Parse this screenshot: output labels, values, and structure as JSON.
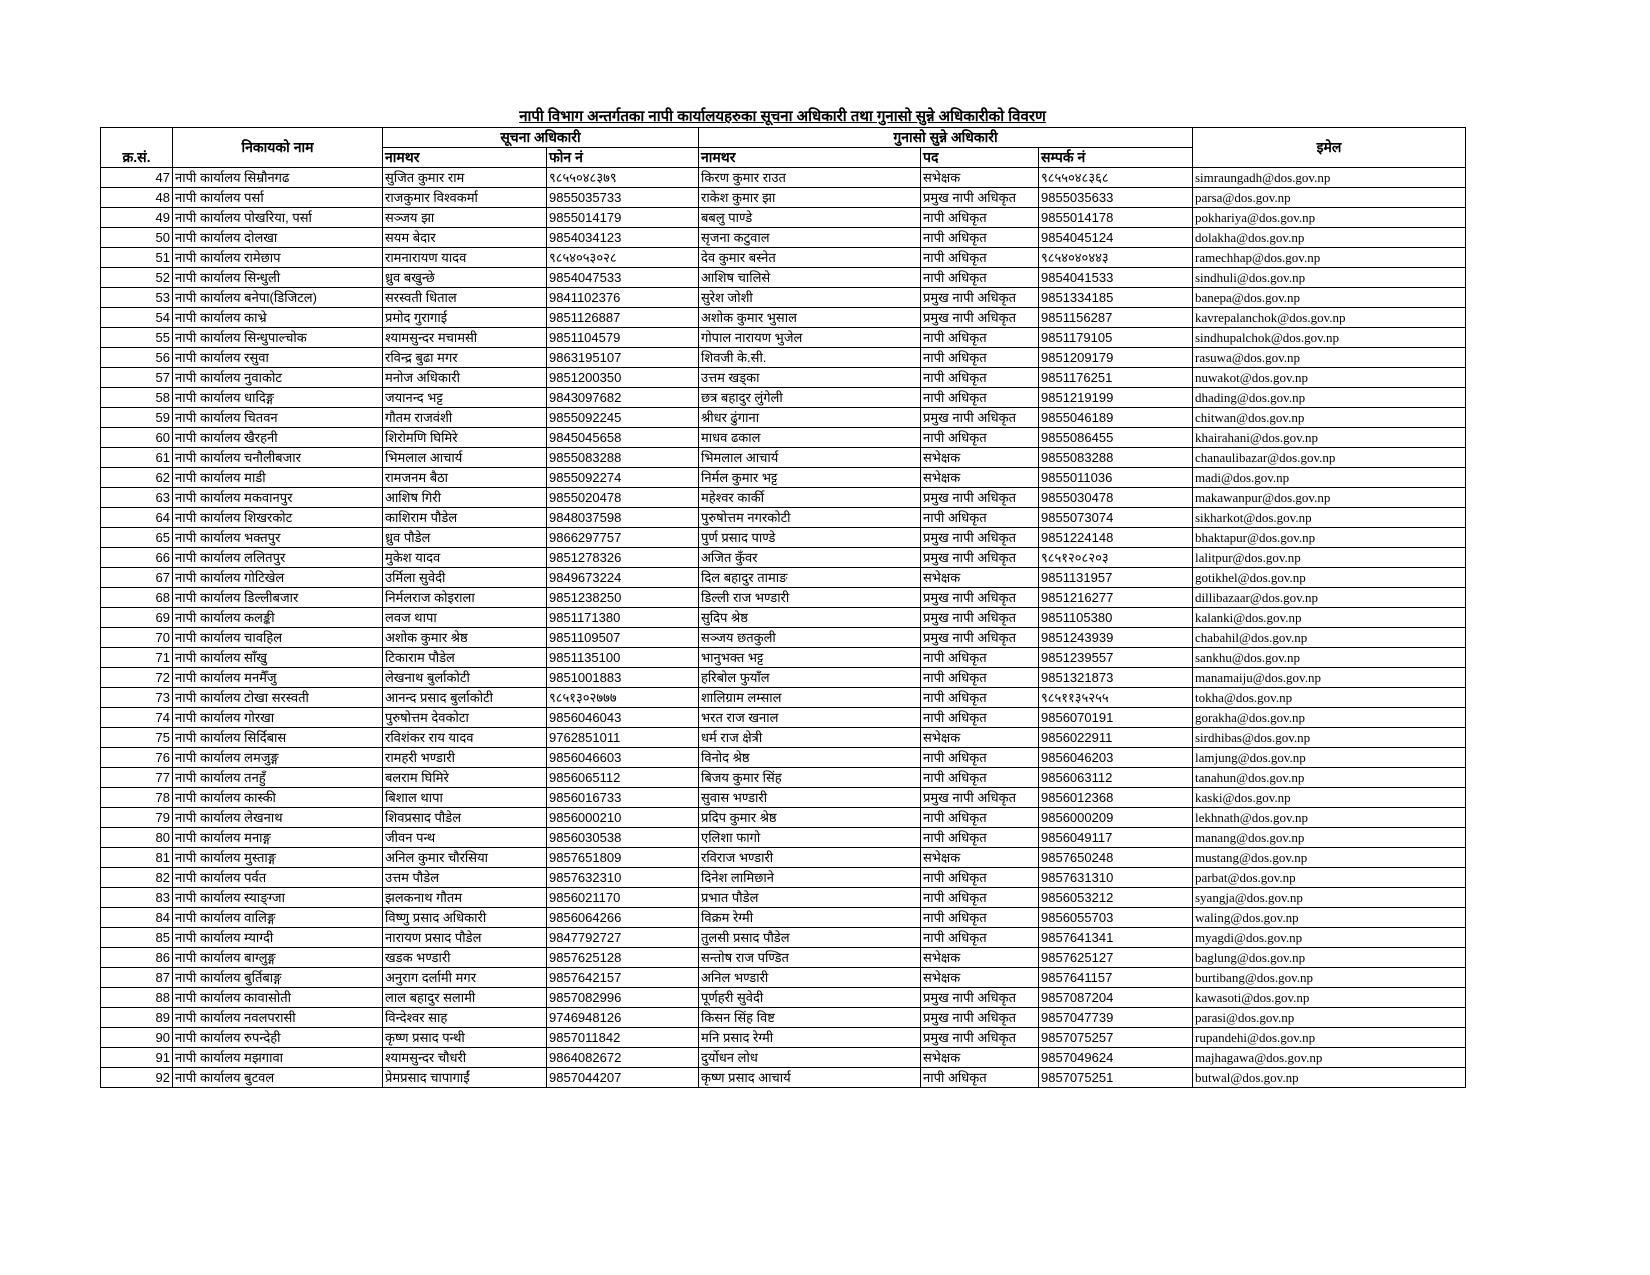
{
  "title": "नापी विभाग अन्तर्गतका नापी कार्यालयहरुका सूचना अधिकारी तथा गुनासो सुन्ने अधिकारीको विवरण",
  "headers": {
    "sn": "क्र.सं.",
    "office": "निकायको नाम",
    "info_officer": "सूचना अधिकारी",
    "grievance_officer": "गुनासो सुन्ने अधिकारी",
    "email": "इमेल",
    "info_name": "नामथर",
    "info_phone": "फोन नं",
    "griev_name": "नामथर",
    "griev_post": "पद",
    "griev_contact": "सम्पर्क नं"
  },
  "rows": [
    [
      "47",
      "नापी कार्यालय सिम्रौनगढ",
      "सुजित कुमार राम",
      "९८५५०४८३७९",
      "किरण कुमार राउत",
      "सभेक्षक",
      "९८५५०४८३६८",
      "simraungadh@dos.gov.np"
    ],
    [
      "48",
      "नापी कार्यालय पर्सा",
      "राजकुमार विश्वकर्मा",
      "9855035733",
      "राकेश कुमार झा",
      "प्रमुख नापी अधिकृत",
      "9855035633",
      "parsa@dos.gov.np"
    ],
    [
      "49",
      "नापी कार्यालय पोखरिया, पर्सा",
      "सञ्जय झा",
      "9855014179",
      "बबलु पाण्डे",
      "नापी अधिकृत",
      "9855014178",
      "pokhariya@dos.gov.np"
    ],
    [
      "50",
      "नापी कार्यालय दोलखा",
      "सयम बेदार",
      "9854034123",
      "सृजना कटुवाल",
      "नापी अधिकृत",
      "9854045124",
      "dolakha@dos.gov.np"
    ],
    [
      "51",
      "नापी कार्यालय रामेछाप",
      "रामनारायण यादव",
      "९८५४०५३०२८",
      "देव कुमार बस्नेत",
      "नापी अधिकृत",
      "९८५४०४०४४३",
      "ramechhap@dos.gov.np"
    ],
    [
      "52",
      "नापी कार्यालय सिन्धुली",
      "ध्रुव बखुन्छे",
      "9854047533",
      "आशिष चालिसे",
      "नापी अधिकृत",
      "9854041533",
      "sindhuli@dos.gov.np"
    ],
    [
      "53",
      "नापी कार्यालय बनेपा(डिजिटल)",
      "सरस्वती धिताल",
      "9841102376",
      "सुरेश जोशी",
      "प्रमुख नापी अधिकृत",
      "9851334185",
      "banepa@dos.gov.np"
    ],
    [
      "54",
      "नापी कार्यालय काभ्रे",
      "प्रमोद गुरागाई",
      "9851126887",
      "अशोक कुमार भुसाल",
      "प्रमुख नापी अधिकृत",
      "9851156287",
      "kavrepalanchok@dos.gov.np"
    ],
    [
      "55",
      "नापी कार्यालय सिन्धुपाल्चोक",
      "श्यामसुन्दर मचामसी",
      "9851104579",
      "गोपाल नारायण भुजेल",
      "नापी अधिकृत",
      "9851179105",
      "sindhupalchok@dos.gov.np"
    ],
    [
      "56",
      "नापी कार्यालय रसुवा",
      "रविन्द्र बुढा मगर",
      "9863195107",
      "शिवजी के.सी.",
      "नापी अधिकृत",
      "9851209179",
      "rasuwa@dos.gov.np"
    ],
    [
      "57",
      "नापी कार्यालय नुवाकोट",
      "मनोज अधिकारी",
      "9851200350",
      "उत्तम खड्का",
      "नापी अधिकृत",
      "9851176251",
      "nuwakot@dos.gov.np"
    ],
    [
      "58",
      "नापी कार्यालय धादिङ्ग",
      "जयानन्द भट्ट",
      "9843097682",
      "छत्र बहादुर लुंगेली",
      "नापी अधिकृत",
      "9851219199",
      "dhading@dos.gov.np"
    ],
    [
      "59",
      "नापी कार्यालय चितवन",
      "गौतम राजवंशी",
      "9855092245",
      "श्रीधर ढुंगाना",
      "प्रमुख नापी अधिकृत",
      "9855046189",
      "chitwan@dos.gov.np"
    ],
    [
      "60",
      "नापी कार्यालय खैरहनी",
      "शिरोमणि घिमिरे",
      "9845045658",
      "माधव ढकाल",
      "नापी अधिकृत",
      "9855086455",
      "khairahani@dos.gov.np"
    ],
    [
      "61",
      "नापी कार्यालय चनौलीबजार",
      "भिमलाल आचार्य",
      "9855083288",
      "भिमलाल आचार्य",
      "सभेक्षक",
      "9855083288",
      "chanaulibazar@dos.gov.np"
    ],
    [
      "62",
      "नापी कार्यालय माडी",
      "रामजनम बैठा",
      "9855092274",
      "निर्मल कुमार भट्ट",
      "सभेक्षक",
      "9855011036",
      "madi@dos.gov.np"
    ],
    [
      "63",
      "नापी कार्यालय मकवानपुर",
      "आशिष गिरी",
      "9855020478",
      "महेश्वर कार्की",
      "प्रमुख नापी अधिकृत",
      "9855030478",
      "makawanpur@dos.gov.np"
    ],
    [
      "64",
      "नापी कार्यालय शिखरकोट",
      "काशिराम पौडेल",
      "9848037598",
      "पुरुषोत्तम नगरकोटी",
      "नापी अधिकृत",
      "9855073074",
      "sikharkot@dos.gov.np"
    ],
    [
      "65",
      "नापी कार्यालय भक्तपुर",
      "ध्रुव पौडेल",
      "9866297757",
      "पुर्ण प्रसाद पाण्डे",
      "प्रमुख नापी अधिकृत",
      "9851224148",
      "bhaktapur@dos.gov.np"
    ],
    [
      "66",
      "नापी कार्यालय ललितपुर",
      "मुकेश यादव",
      "9851278326",
      "अजित कुँवर",
      "प्रमुख नापी अधिकृत",
      "९८५१२०८२०३",
      "lalitpur@dos.gov.np"
    ],
    [
      "67",
      "नापी कार्यालय गोटिखेल",
      "उर्मिला सुवेदी",
      "9849673224",
      "दिल बहादुर तामाङ",
      "सभेक्षक",
      "9851131957",
      "gotikhel@dos.gov.np"
    ],
    [
      "68",
      "नापी कार्यालय डिल्लीबजार",
      "निर्मलराज कोइराला",
      "9851238250",
      "डिल्ली राज भण्डारी",
      "प्रमुख नापी अधिकृत",
      "9851216277",
      "dillibazaar@dos.gov.np"
    ],
    [
      "69",
      "नापी कार्यालय कलङ्की",
      "लवज थापा",
      "9851171380",
      "सुदिप श्रेष्ठ",
      "प्रमुख नापी अधिकृत",
      "9851105380",
      "kalanki@dos.gov.np"
    ],
    [
      "70",
      "नापी कार्यालय चावहिल",
      "अशोक कुमार श्रेष्ठ",
      "9851109507",
      "सञ्जय छतकुली",
      "प्रमुख नापी अधिकृत",
      "9851243939",
      "chabahil@dos.gov.np"
    ],
    [
      "71",
      "नापी कार्यालय साँखु",
      "टिकाराम पौडेल",
      "9851135100",
      "भानुभक्त भट्ट",
      "नापी अधिकृत",
      "9851239557",
      "sankhu@dos.gov.np"
    ],
    [
      "72",
      "नापी कार्यालय मनमैँजु",
      "लेखनाथ बुर्लाकोटी",
      "9851001883",
      "हरिबोल फुयाँल",
      "नापी अधिकृत",
      "9851321873",
      "manamaiju@dos.gov.np"
    ],
    [
      "73",
      "नापी कार्यालय टोखा सरस्वती",
      "आनन्द प्रसाद बुर्लाकोटी",
      "९८५१३०२७७७",
      "शालिग्राम लम्साल",
      "नापी अधिकृत",
      "९८५११३५२५५",
      "tokha@dos.gov.np"
    ],
    [
      "74",
      "नापी कार्यालय गोरखा",
      "पुरुषोत्तम देवकोटा",
      "9856046043",
      "भरत राज खनाल",
      "नापी अधिकृत",
      "9856070191",
      "gorakha@dos.gov.np"
    ],
    [
      "75",
      "नापी कार्यालय सिर्दिबास",
      "रविशंकर राय यादव",
      "9762851011",
      "धर्म राज क्षेत्री",
      "सभेक्षक",
      "9856022911",
      "sirdhibas@dos.gov.np"
    ],
    [
      "76",
      "नापी कार्यालय लमजुङ्ग",
      "रामहरी भण्डारी",
      "9856046603",
      "विनोद श्रेष्ठ",
      "नापी अधिकृत",
      "9856046203",
      "lamjung@dos.gov.np"
    ],
    [
      "77",
      "नापी कार्यालय तनहुँ",
      "बलराम घिमिरे",
      "9856065112",
      "बिजय कुमार सिंह",
      "नापी अधिकृत",
      "9856063112",
      "tanahun@dos.gov.np"
    ],
    [
      "78",
      "नापी कार्यालय कास्की",
      "बिशाल थापा",
      "9856016733",
      "सुवास भण्डारी",
      "प्रमुख नापी अधिकृत",
      "9856012368",
      "kaski@dos.gov.np"
    ],
    [
      "79",
      "नापी कार्यालय लेखनाथ",
      "शिवप्रसाद पौडेल",
      "9856000210",
      "प्रदिप कुमार श्रेष्ठ",
      "नापी अधिकृत",
      "9856000209",
      "lekhnath@dos.gov.np"
    ],
    [
      "80",
      "नापी कार्यालय मनाङ्ग",
      "जीवन पन्थ",
      "9856030538",
      "एलिशा फागो",
      "नापी अधिकृत",
      "9856049117",
      "manang@dos.gov.np"
    ],
    [
      "81",
      "नापी कार्यालय मुस्ताङ्ग",
      "अनिल कुमार चौरसिया",
      "9857651809",
      "रविराज भण्डारी",
      "सभेक्षक",
      "9857650248",
      "mustang@dos.gov.np"
    ],
    [
      "82",
      "नापी कार्यालय पर्वत",
      "उत्तम पौडेल",
      "9857632310",
      "दिनेश लामिछाने",
      "नापी अधिकृत",
      "9857631310",
      "parbat@dos.gov.np"
    ],
    [
      "83",
      "नापी कार्यालय स्याङ्ग्जा",
      "झलकनाथ गौतम",
      "9856021170",
      "प्रभात पौडेल",
      "नापी अधिकृत",
      "9856053212",
      "syangja@dos.gov.np"
    ],
    [
      "84",
      "नापी कार्यालय वालिङ्ग",
      "विष्णु प्रसाद अधिकारी",
      "9856064266",
      "विक्रम रेग्मी",
      "नापी अधिकृत",
      "9856055703",
      "waling@dos.gov.np"
    ],
    [
      "85",
      "नापी कार्यालय म्याग्दी",
      "नारायण प्रसाद पौडेल",
      "9847792727",
      "तुलसी प्रसाद पौडेल",
      "नापी अधिकृत",
      "9857641341",
      "myagdi@dos.gov.np"
    ],
    [
      "86",
      "नापी कार्यालय बाग्लुङ्ग",
      "खडक भण्डारी",
      "9857625128",
      "सन्तोष राज पण्डित",
      "सभेक्षक",
      "9857625127",
      "baglung@dos.gov.np"
    ],
    [
      "87",
      "नापी कार्यालय बुर्तिबाङ्ग",
      "अनुराग दर्लामी मगर",
      "9857642157",
      "अनिल भण्डारी",
      "सभेक्षक",
      "9857641157",
      "burtibang@dos.gov.np"
    ],
    [
      "88",
      "नापी कार्यालय कावासोती",
      "लाल बहादुर सलामी",
      "9857082996",
      "पूर्णहरी सुवेदी",
      "प्रमुख नापी अधिकृत",
      "9857087204",
      "kawasoti@dos.gov.np"
    ],
    [
      "89",
      "नापी कार्यालय नवलपरासी",
      "विन्देश्वर साह",
      "9746948126",
      "किसन सिंह विष्ट",
      "प्रमुख नापी अधिकृत",
      "9857047739",
      "parasi@dos.gov.np"
    ],
    [
      "90",
      "नापी कार्यालय रुपन्देही",
      "कृष्ण प्रसाद पन्थी",
      "9857011842",
      "मनि प्रसाद रेग्मी",
      "प्रमुख नापी अधिकृत",
      "9857075257",
      "rupandehi@dos.gov.np"
    ],
    [
      "91",
      "नापी कार्यालय मझगावा",
      "श्यामसुन्दर चौधरी",
      "9864082672",
      "दुर्योधन लोध",
      "सभेक्षक",
      "9857049624",
      "majhagawa@dos.gov.np"
    ],
    [
      "92",
      "नापी कार्यालय बुटवल",
      "प्रेमप्रसाद चापागाईं",
      "9857044207",
      "कृष्ण प्रसाद आचार्य",
      "नापी अधिकृत",
      "9857075251",
      "butwal@dos.gov.np"
    ]
  ]
}
